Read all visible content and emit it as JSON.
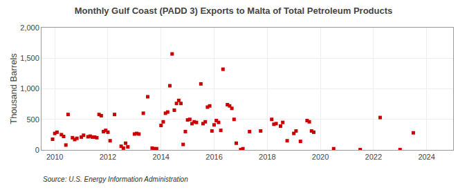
{
  "chart_data": {
    "type": "scatter",
    "title": "Monthly Gulf Coast (PADD 3) Exports to Malta of Total Petroleum Products",
    "ylabel": "Thousand Barrels",
    "annotations": [
      "Source: U.S. Energy Information Administration"
    ],
    "color": "#cc0000",
    "marker": "square",
    "grid": true,
    "xlim": [
      2009.5,
      2025.0
    ],
    "ylim": [
      0,
      2000
    ],
    "xticks": [
      2010,
      2012,
      2014,
      2016,
      2018,
      2020,
      2022,
      2024
    ],
    "yticks": [
      0,
      500,
      {
        "value": 1000,
        "label": "1,000"
      },
      {
        "value": 1500,
        "label": "1,500"
      },
      {
        "value": 2000,
        "label": "2,000"
      }
    ],
    "x": [
      2009.917,
      2010.0,
      2010.083,
      2010.25,
      2010.333,
      2010.417,
      2010.5,
      2010.667,
      2010.75,
      2010.833,
      2011.0,
      2011.083,
      2011.25,
      2011.333,
      2011.417,
      2011.5,
      2011.583,
      2011.667,
      2011.75,
      2011.833,
      2011.917,
      2012.0,
      2012.083,
      2012.25,
      2012.5,
      2012.583,
      2012.667,
      2012.75,
      2013.0,
      2013.083,
      2013.167,
      2013.333,
      2013.5,
      2013.667,
      2013.75,
      2013.833,
      2014.0,
      2014.083,
      2014.167,
      2014.25,
      2014.333,
      2014.417,
      2014.5,
      2014.583,
      2014.667,
      2014.75,
      2014.833,
      2014.917,
      2015.0,
      2015.083,
      2015.167,
      2015.25,
      2015.333,
      2015.5,
      2015.583,
      2015.667,
      2015.75,
      2015.833,
      2015.917,
      2016.0,
      2016.083,
      2016.167,
      2016.25,
      2016.333,
      2016.5,
      2016.583,
      2016.667,
      2016.75,
      2016.833,
      2017.0,
      2017.083,
      2017.333,
      2017.75,
      2018.167,
      2018.25,
      2018.333,
      2018.5,
      2018.583,
      2018.75,
      2019.0,
      2019.083,
      2019.25,
      2019.5,
      2019.583,
      2019.667,
      2019.75,
      2020.5,
      2021.5,
      2022.25,
      2023.0,
      2023.5
    ],
    "values": [
      175,
      270,
      290,
      250,
      220,
      80,
      580,
      200,
      170,
      190,
      210,
      240,
      215,
      225,
      210,
      210,
      200,
      580,
      560,
      300,
      320,
      290,
      150,
      580,
      60,
      30,
      110,
      50,
      260,
      270,
      260,
      600,
      870,
      30,
      20,
      20,
      400,
      460,
      600,
      620,
      1050,
      1570,
      650,
      760,
      810,
      760,
      90,
      300,
      490,
      500,
      430,
      460,
      450,
      1080,
      430,
      460,
      700,
      720,
      310,
      410,
      480,
      450,
      320,
      1320,
      740,
      720,
      680,
      500,
      110,
      5,
      20,
      300,
      310,
      500,
      420,
      430,
      390,
      450,
      150,
      270,
      310,
      140,
      480,
      460,
      310,
      290,
      20,
      5,
      530,
      5,
      280
    ]
  }
}
